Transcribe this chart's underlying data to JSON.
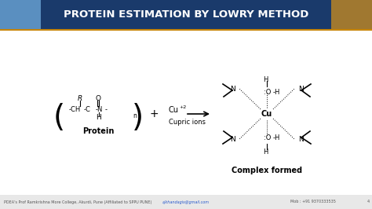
{
  "title": "PROTEIN ESTIMATION BY LOWRY METHOD",
  "title_bg": "#1a3a6b",
  "title_color": "#ffffff",
  "slide_bg": "#f0f0f0",
  "footer_text": "PDEA's Prof Ramkrishna More College, Akurdi, Pune (Affiliated to SPPU PUNE)",
  "footer_email": "ajkhandagis@gmail.com",
  "footer_mob": "Mob : +91 9370333535",
  "footer_page": "4",
  "protein_label": "Protein",
  "cupric_label": "Cupric ions",
  "complex_label": "Complex formed",
  "header_img_color_left": "#4a90d9",
  "header_img_color_right": "#8b6914"
}
